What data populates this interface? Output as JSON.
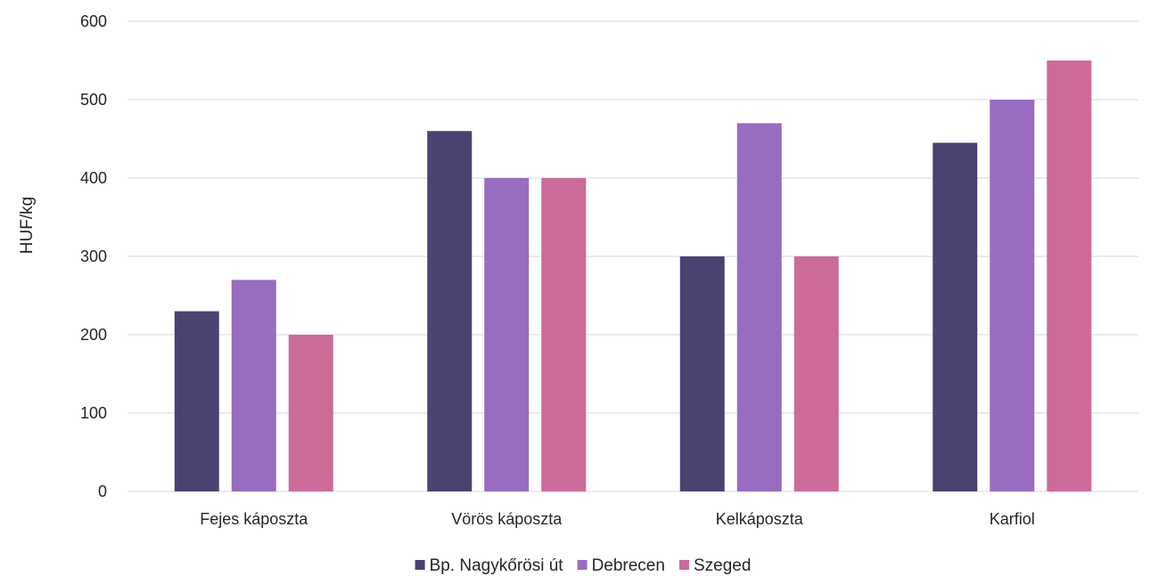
{
  "chart_data": {
    "type": "bar",
    "title": "",
    "xlabel": "",
    "ylabel": "HUF/kg",
    "ylim": [
      0,
      600
    ],
    "yticks": [
      0,
      100,
      200,
      300,
      400,
      500,
      600
    ],
    "grid": true,
    "legend": "bottom",
    "categories": [
      "Fejes káposzta",
      "Vörös káposzta",
      "Kelkáposzta",
      "Karfiol"
    ],
    "series": [
      {
        "name": "Bp. Nagykőrösi út",
        "color": "#4b4272",
        "values": [
          230,
          460,
          300,
          445
        ]
      },
      {
        "name": "Debrecen",
        "color": "#976cc1",
        "values": [
          270,
          400,
          470,
          500
        ]
      },
      {
        "name": "Szeged",
        "color": "#cc6a9a",
        "values": [
          200,
          400,
          300,
          550
        ]
      }
    ]
  }
}
